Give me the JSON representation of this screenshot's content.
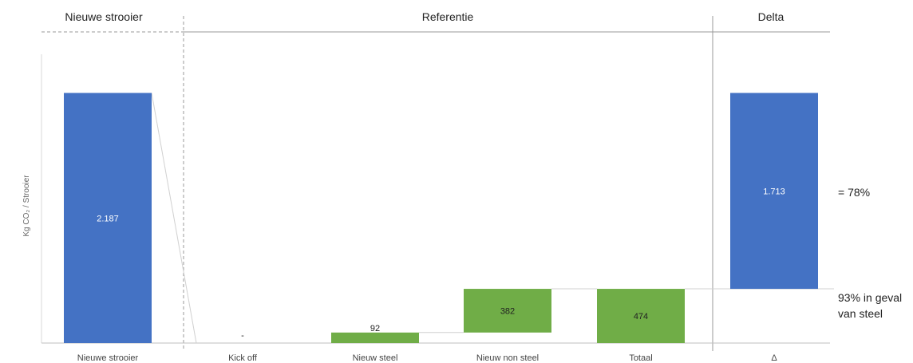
{
  "chart_data": {
    "type": "bar",
    "sections": [
      {
        "id": "new",
        "label": "Nieuwe strooier"
      },
      {
        "id": "ref",
        "label": "Referentie"
      },
      {
        "id": "delta",
        "label": "Delta"
      }
    ],
    "ylabel": "Kg CO₂ / Strooier",
    "ylim": [
      0,
      2500
    ],
    "bars": [
      {
        "id": "nieuwe-strooier",
        "category": "Nieuwe strooier",
        "base": 0,
        "value": 2187,
        "label": "2.187",
        "color": "#4472C4"
      },
      {
        "id": "kick-off",
        "category": "Kick off",
        "base": 0,
        "value": 0,
        "label": "-",
        "color": "#70AD47"
      },
      {
        "id": "nieuw-steel",
        "category": "Nieuw steel",
        "base": 0,
        "value": 92,
        "label": "92",
        "color": "#70AD47"
      },
      {
        "id": "nieuw-non-steel",
        "category": "Nieuw non steel",
        "base": 92,
        "value": 382,
        "label": "382",
        "color": "#70AD47"
      },
      {
        "id": "totaal",
        "category": "Totaal",
        "base": 0,
        "value": 474,
        "label": "474",
        "color": "#70AD47"
      },
      {
        "id": "delta",
        "category": "Δ",
        "base": 474,
        "value": 1713,
        "label": "1.713",
        "color": "#4472C4"
      }
    ],
    "annotations": [
      {
        "id": "pct-78",
        "text": "= 78%"
      },
      {
        "id": "pct-93",
        "lines": [
          "93% in geval",
          "van steel"
        ]
      }
    ]
  }
}
